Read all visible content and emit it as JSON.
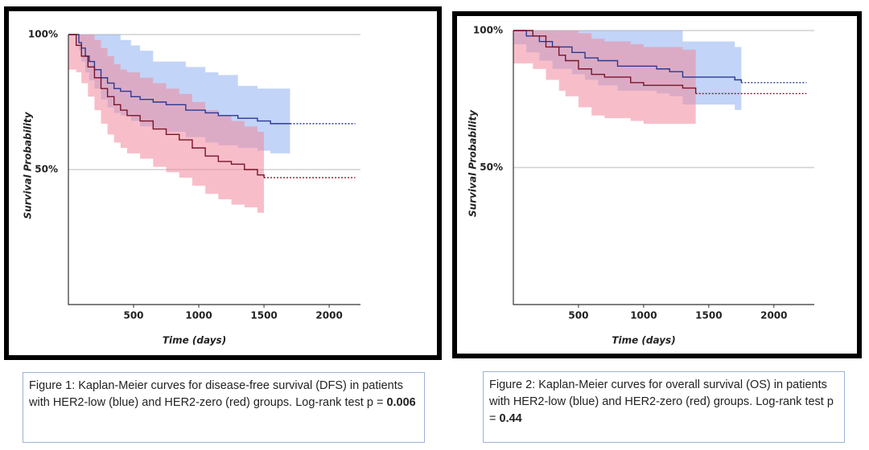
{
  "chart_data": [
    {
      "type": "step",
      "x_label": "Time (days)",
      "y_label": "Survival Probability",
      "xlim": [
        0,
        2240
      ],
      "ylim": [
        0,
        100
      ],
      "xticks": [
        500,
        1000,
        1500,
        2000
      ],
      "yticks": [
        {
          "value": 50,
          "label": "50%"
        },
        {
          "value": 100,
          "label": "100%"
        }
      ],
      "grid": true,
      "caption": [
        "Figure 1: Kaplan-Meier curves for disease-free survival (DFS) in patients with HER2-low (blue) and HER2-zero (red) groups. Log-rank test p = ",
        "0.006"
      ],
      "series": [
        {
          "color": "#2b3990",
          "band_color": "#8fb0f0",
          "extend_to": 2200,
          "x": [
            0,
            50,
            80,
            100,
            130,
            160,
            200,
            250,
            300,
            350,
            400,
            480,
            550,
            650,
            750,
            900,
            1050,
            1150,
            1300,
            1450,
            1550,
            1700
          ],
          "values": [
            100,
            100,
            97,
            95,
            92,
            90,
            87,
            84,
            82,
            80,
            79,
            77,
            76,
            75,
            74,
            72,
            71,
            70,
            69,
            68,
            67,
            67
          ],
          "upper": [
            100,
            100,
            100,
            100,
            100,
            100,
            100,
            100,
            100,
            100,
            98,
            96,
            94,
            90,
            90,
            88,
            86,
            85,
            81,
            80,
            80,
            80
          ],
          "lower": [
            100,
            100,
            94,
            90,
            86,
            83,
            80,
            76,
            73,
            71,
            70,
            68,
            66,
            65,
            64,
            62,
            60,
            59,
            58,
            57,
            56,
            56
          ]
        },
        {
          "color": "#7a1426",
          "band_color": "#f0889e",
          "extend_to": 2200,
          "x": [
            0,
            60,
            100,
            150,
            200,
            250,
            300,
            350,
            400,
            450,
            550,
            650,
            750,
            850,
            950,
            1050,
            1150,
            1250,
            1350,
            1450,
            1500
          ],
          "values": [
            100,
            96,
            92,
            88,
            84,
            80,
            77,
            74,
            72,
            70,
            68,
            65,
            63,
            61,
            58,
            55,
            53,
            52,
            50,
            48,
            47
          ],
          "upper": [
            100,
            100,
            100,
            100,
            98,
            95,
            92,
            89,
            87,
            86,
            84,
            82,
            80,
            78,
            75,
            72,
            70,
            68,
            66,
            64,
            63
          ],
          "lower": [
            87,
            86,
            82,
            77,
            72,
            67,
            63,
            60,
            58,
            56,
            54,
            51,
            49,
            47,
            44,
            41,
            39,
            37,
            36,
            34,
            33
          ]
        }
      ]
    },
    {
      "type": "step",
      "x_label": "Time (days)",
      "y_label": "Survival Probability",
      "xlim": [
        0,
        2310
      ],
      "ylim": [
        0,
        100
      ],
      "xticks": [
        500,
        1000,
        1500,
        2000
      ],
      "yticks": [
        {
          "value": 50,
          "label": "50%"
        },
        {
          "value": 100,
          "label": "100%"
        }
      ],
      "grid": true,
      "caption": [
        "Figure 2: Kaplan-Meier curves for overall survival (OS) in patients with HER2-low (blue) and HER2-zero (red) groups. Log-rank test p = ",
        "0.44"
      ],
      "series": [
        {
          "color": "#2b3990",
          "band_color": "#8fb0f0",
          "extend_to": 2250,
          "x": [
            0,
            100,
            200,
            300,
            450,
            550,
            650,
            800,
            1100,
            1200,
            1300,
            1700,
            1750
          ],
          "values": [
            100,
            98,
            96,
            94,
            92,
            90,
            89,
            87,
            86,
            85,
            83,
            82,
            81
          ],
          "upper": [
            100,
            100,
            100,
            100,
            100,
            100,
            100,
            100,
            100,
            100,
            96,
            94,
            94
          ],
          "lower": [
            95,
            92,
            89,
            86,
            84,
            82,
            80,
            78,
            77,
            76,
            73,
            71,
            70
          ]
        },
        {
          "color": "#7a1426",
          "band_color": "#f0889e",
          "extend_to": 2250,
          "x": [
            0,
            150,
            250,
            350,
            400,
            500,
            600,
            700,
            900,
            1000,
            1300,
            1400
          ],
          "values": [
            100,
            98,
            94,
            91,
            89,
            86,
            84,
            83,
            81,
            80,
            79,
            77
          ],
          "upper": [
            100,
            100,
            100,
            100,
            100,
            99,
            97,
            96,
            95,
            94,
            93,
            92
          ],
          "lower": [
            88,
            86,
            82,
            78,
            76,
            72,
            69,
            68,
            67,
            66,
            66,
            64
          ]
        }
      ]
    }
  ]
}
